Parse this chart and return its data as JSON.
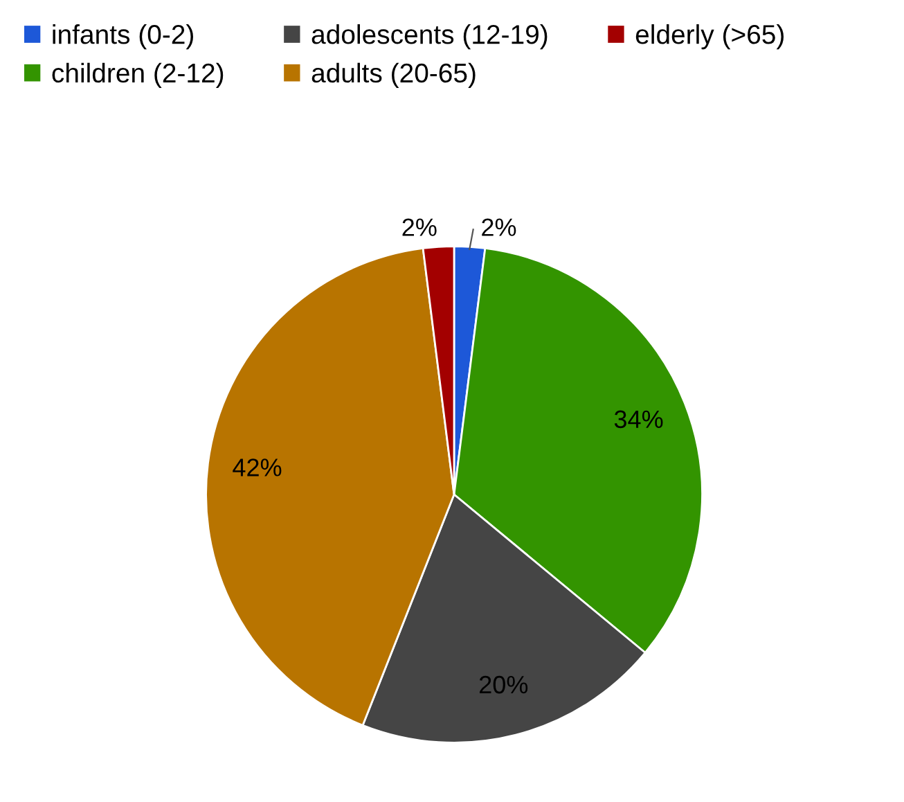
{
  "chart_data": {
    "type": "pie",
    "categories": [
      "infants (0-2)",
      "children (2-12)",
      "adolescents (12-19)",
      "adults (20-65)",
      "elderly (>65)"
    ],
    "values": [
      2,
      34,
      20,
      42,
      2
    ],
    "colors": [
      "#1d58d8",
      "#339400",
      "#454545",
      "#b87400",
      "#a30000"
    ],
    "value_labels": [
      "2%",
      "34%",
      "20%",
      "42%",
      "2%"
    ],
    "legend": "top"
  }
}
